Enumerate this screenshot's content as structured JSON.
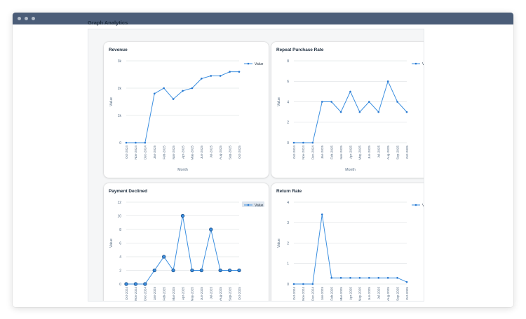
{
  "window": {
    "controls": [
      "close",
      "minimize",
      "maximize"
    ]
  },
  "page": {
    "title": "Graph Analytics"
  },
  "colors": {
    "line": "#3b8fe0",
    "marker": "#2878d0",
    "grid": "#d5d9de",
    "axis_text": "#556b82",
    "highlight_marker": "#1b4f8a"
  },
  "chart_data": [
    {
      "type": "line",
      "title": "Revenue",
      "xlabel": "Month",
      "ylabel": "Value",
      "legend": "top-right",
      "categories": [
        "Oct-2024",
        "Nov-2024",
        "Dec-2024",
        "Jan-2025",
        "Feb-2025",
        "Mar-2025",
        "Apr-2025",
        "May-2025",
        "Jun-2025",
        "Jul-2025",
        "Aug-2025",
        "Sep-2025",
        "Oct-2025"
      ],
      "series": [
        {
          "name": "Value",
          "values": [
            0,
            0,
            0,
            1800,
            2000,
            1600,
            1900,
            2000,
            2350,
            2450,
            2450,
            2600,
            2600
          ]
        }
      ],
      "ylim": [
        0,
        3000
      ],
      "yticks": [
        0,
        1000,
        2000,
        3000
      ],
      "ytick_labels": [
        "0",
        "1k",
        "2k",
        "3k"
      ]
    },
    {
      "type": "line",
      "title": "Repeat Purchase Rate",
      "xlabel": "Month",
      "ylabel": "Value",
      "legend": "top-right",
      "categories": [
        "Oct-2024",
        "Nov-2024",
        "Dec-2024",
        "Jan-2025",
        "Feb-2025",
        "Mar-2025",
        "Apr-2025",
        "May-2025",
        "Jun-2025",
        "Jul-2025",
        "Aug-2025",
        "Sep-2025",
        "Oct-2025"
      ],
      "series": [
        {
          "name": "Value",
          "values": [
            0,
            0,
            0,
            4,
            4,
            3,
            5,
            3,
            4,
            3,
            6,
            4,
            3
          ]
        }
      ],
      "ylim": [
        0,
        8
      ],
      "yticks": [
        0,
        2,
        4,
        6,
        8
      ],
      "ytick_labels": [
        "0",
        "2",
        "4",
        "6",
        "8"
      ]
    },
    {
      "type": "line",
      "title": "Payment Declined",
      "xlabel": "",
      "ylabel": "Value",
      "legend": "top-right",
      "categories": [
        "Oct-2024",
        "Nov-2024",
        "Dec-2024",
        "Jan-2025",
        "Feb-2025",
        "Mar-2025",
        "Apr-2025",
        "May-2025",
        "Jun-2025",
        "Jul-2025",
        "Aug-2025",
        "Sep-2025",
        "Oct-2025"
      ],
      "series": [
        {
          "name": "Value",
          "values": [
            0,
            0,
            0,
            2,
            4,
            2,
            10,
            2,
            2,
            8,
            2,
            2,
            2
          ]
        }
      ],
      "ylim": [
        0,
        12
      ],
      "yticks": [
        0,
        2,
        4,
        6,
        8,
        10,
        12
      ],
      "ytick_labels": [
        "0",
        "2",
        "4",
        "6",
        "8",
        "10",
        "12"
      ],
      "highlighted": true
    },
    {
      "type": "line",
      "title": "Return Rate",
      "xlabel": "",
      "ylabel": "Value",
      "legend": "top-right",
      "categories": [
        "Oct-2024",
        "Nov-2024",
        "Dec-2024",
        "Jan-2025",
        "Feb-2025",
        "Mar-2025",
        "Apr-2025",
        "May-2025",
        "Jun-2025",
        "Jul-2025",
        "Aug-2025",
        "Sep-2025",
        "Oct-2025"
      ],
      "series": [
        {
          "name": "Value",
          "values": [
            0,
            0,
            0,
            3.4,
            0.3,
            0.3,
            0.3,
            0.3,
            0.3,
            0.3,
            0.3,
            0.3,
            0.1
          ]
        }
      ],
      "ylim": [
        0,
        4
      ],
      "yticks": [
        0,
        1,
        2,
        3,
        4
      ],
      "ytick_labels": [
        "0",
        "1",
        "2",
        "3",
        "4"
      ]
    }
  ]
}
